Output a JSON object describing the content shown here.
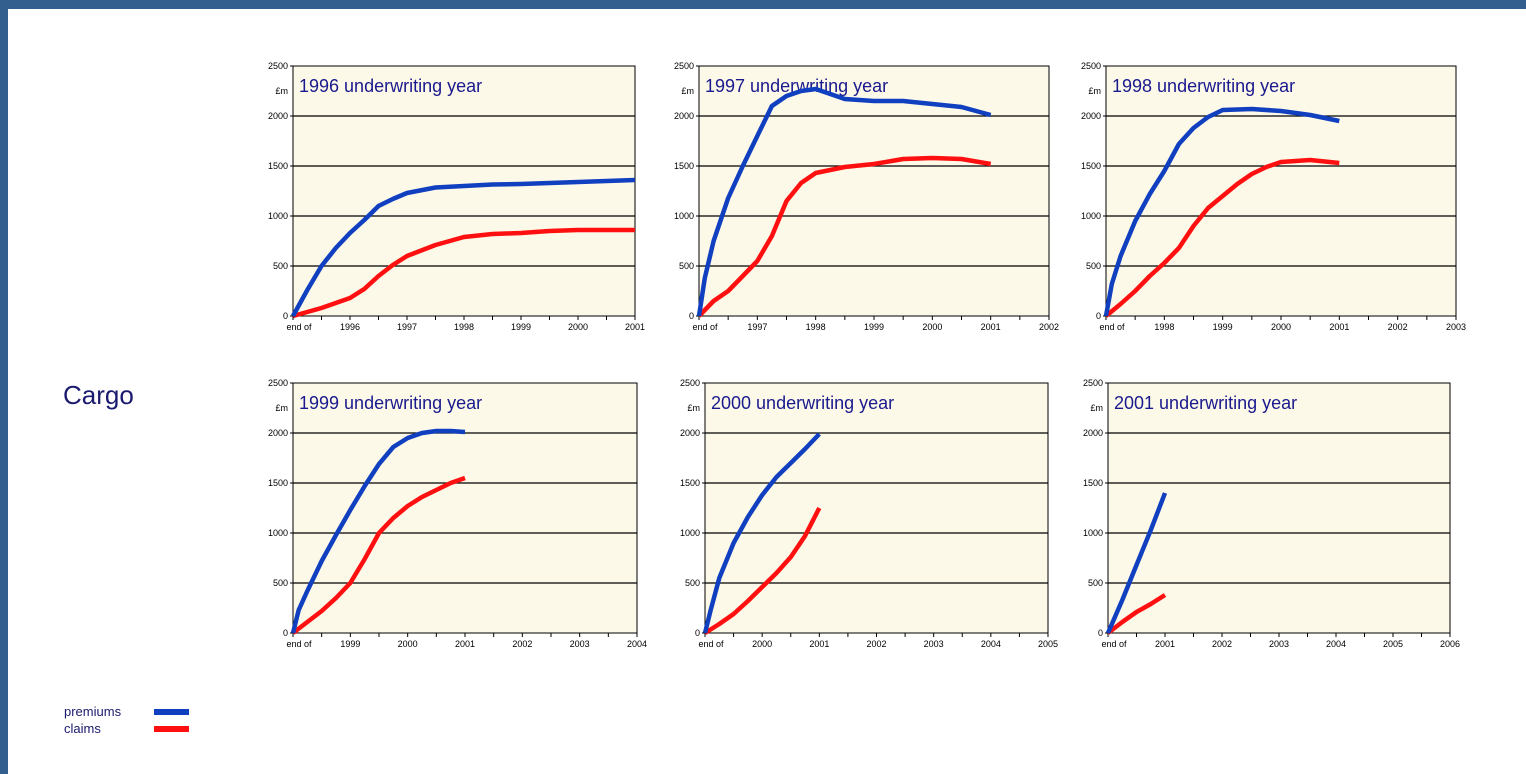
{
  "section_label": "Cargo",
  "legend": {
    "premiums_label": "premiums",
    "claims_label": "claims"
  },
  "colors": {
    "premiums": "#1040c0",
    "claims": "#ff1010",
    "plot_background": "#fdf9e8",
    "title_text": "#1a1a8e",
    "frame": "#335f8f"
  },
  "chart_data": [
    {
      "type": "line",
      "title": "1996 underwriting year",
      "ylabel": "£m",
      "ylim": [
        0,
        2500
      ],
      "yticks": [
        0,
        500,
        1000,
        1500,
        2000,
        2500
      ],
      "xlim": [
        0,
        6
      ],
      "x_tick_labels": [
        "end of",
        "1996",
        "1997",
        "1998",
        "1999",
        "2000",
        "2001"
      ],
      "grid": true,
      "series": [
        {
          "name": "premiums",
          "x": [
            0,
            0.25,
            0.5,
            0.75,
            1.0,
            1.25,
            1.5,
            1.75,
            2.0,
            2.5,
            3.0,
            3.5,
            4.0,
            4.5,
            5.0,
            5.5,
            6.0
          ],
          "y": [
            0,
            260,
            500,
            680,
            830,
            960,
            1100,
            1170,
            1230,
            1285,
            1300,
            1315,
            1320,
            1330,
            1340,
            1350,
            1360
          ]
        },
        {
          "name": "claims",
          "x": [
            0,
            0.5,
            1.0,
            1.25,
            1.5,
            1.75,
            2.0,
            2.5,
            3.0,
            3.5,
            4.0,
            4.5,
            5.0,
            6.0
          ],
          "y": [
            0,
            80,
            180,
            270,
            400,
            510,
            600,
            710,
            790,
            820,
            830,
            850,
            860,
            860
          ]
        }
      ]
    },
    {
      "type": "line",
      "title": "1997 underwriting year",
      "ylabel": "£m",
      "ylim": [
        0,
        2500
      ],
      "yticks": [
        0,
        500,
        1000,
        1500,
        2000,
        2500
      ],
      "xlim": [
        0,
        6
      ],
      "x_tick_labels": [
        "end of",
        "1997",
        "1998",
        "1999",
        "2000",
        "2001",
        "2002"
      ],
      "grid": true,
      "series": [
        {
          "name": "premiums",
          "x": [
            0,
            0.1,
            0.25,
            0.5,
            0.75,
            1.0,
            1.25,
            1.5,
            1.75,
            2.0,
            2.25,
            2.5,
            3.0,
            3.5,
            4.0,
            4.5,
            5.0
          ],
          "y": [
            0,
            380,
            750,
            1180,
            1500,
            1800,
            2100,
            2200,
            2250,
            2270,
            2220,
            2170,
            2150,
            2150,
            2120,
            2090,
            2010
          ]
        },
        {
          "name": "claims",
          "x": [
            0,
            0.25,
            0.5,
            0.75,
            1.0,
            1.25,
            1.5,
            1.75,
            2.0,
            2.5,
            3.0,
            3.5,
            4.0,
            4.5,
            5.0
          ],
          "y": [
            0,
            150,
            250,
            400,
            550,
            800,
            1150,
            1330,
            1430,
            1490,
            1520,
            1570,
            1580,
            1570,
            1520
          ]
        }
      ]
    },
    {
      "type": "line",
      "title": "1998 underwriting year",
      "ylabel": "£m",
      "ylim": [
        0,
        2500
      ],
      "yticks": [
        0,
        500,
        1000,
        1500,
        2000,
        2500
      ],
      "xlim": [
        0,
        6
      ],
      "x_tick_labels": [
        "end of",
        "1998",
        "1999",
        "2000",
        "2001",
        "2002",
        "2003"
      ],
      "grid": true,
      "series": [
        {
          "name": "premiums",
          "x": [
            0,
            0.1,
            0.25,
            0.5,
            0.75,
            1.0,
            1.25,
            1.5,
            1.75,
            2.0,
            2.5,
            3.0,
            3.5,
            4.0
          ],
          "y": [
            0,
            320,
            600,
            950,
            1220,
            1450,
            1720,
            1880,
            1990,
            2060,
            2070,
            2050,
            2010,
            1950
          ]
        },
        {
          "name": "claims",
          "x": [
            0,
            0.25,
            0.5,
            0.75,
            1.0,
            1.25,
            1.5,
            1.75,
            2.0,
            2.25,
            2.5,
            2.75,
            3.0,
            3.5,
            4.0
          ],
          "y": [
            0,
            120,
            250,
            400,
            530,
            680,
            900,
            1080,
            1200,
            1320,
            1420,
            1490,
            1540,
            1560,
            1530
          ]
        }
      ]
    },
    {
      "type": "line",
      "title": "1999 underwriting year",
      "ylabel": "£m",
      "ylim": [
        0,
        2500
      ],
      "yticks": [
        0,
        500,
        1000,
        1500,
        2000,
        2500
      ],
      "xlim": [
        0,
        6
      ],
      "x_tick_labels": [
        "end of",
        "1999",
        "2000",
        "2001",
        "2002",
        "2003",
        "2004"
      ],
      "grid": true,
      "series": [
        {
          "name": "premiums",
          "x": [
            0,
            0.1,
            0.25,
            0.5,
            0.75,
            1.0,
            1.25,
            1.5,
            1.75,
            2.0,
            2.25,
            2.5,
            2.75,
            3.0
          ],
          "y": [
            0,
            230,
            420,
            720,
            980,
            1230,
            1470,
            1690,
            1860,
            1950,
            2000,
            2020,
            2020,
            2010
          ]
        },
        {
          "name": "claims",
          "x": [
            0,
            0.25,
            0.5,
            0.75,
            1.0,
            1.25,
            1.5,
            1.75,
            2.0,
            2.25,
            2.5,
            2.75,
            3.0
          ],
          "y": [
            0,
            110,
            220,
            350,
            500,
            740,
            1000,
            1150,
            1270,
            1360,
            1430,
            1500,
            1550
          ]
        }
      ]
    },
    {
      "type": "line",
      "title": "2000 underwriting year",
      "ylabel": "£m",
      "ylim": [
        0,
        2500
      ],
      "yticks": [
        0,
        500,
        1000,
        1500,
        2000,
        2500
      ],
      "xlim": [
        0,
        6
      ],
      "x_tick_labels": [
        "end of",
        "2000",
        "2001",
        "2002",
        "2003",
        "2004",
        "2005"
      ],
      "grid": true,
      "series": [
        {
          "name": "premiums",
          "x": [
            0,
            0.1,
            0.25,
            0.5,
            0.75,
            1.0,
            1.25,
            1.5,
            1.75,
            2.0
          ],
          "y": [
            0,
            230,
            550,
            900,
            1160,
            1380,
            1560,
            1700,
            1840,
            1990
          ]
        },
        {
          "name": "claims",
          "x": [
            0,
            0.25,
            0.5,
            0.75,
            1.0,
            1.25,
            1.5,
            1.75,
            2.0
          ],
          "y": [
            0,
            90,
            190,
            320,
            460,
            600,
            760,
            970,
            1250
          ]
        }
      ]
    },
    {
      "type": "line",
      "title": "2001 underwriting year",
      "ylabel": "£m",
      "ylim": [
        0,
        2500
      ],
      "yticks": [
        0,
        500,
        1000,
        1500,
        2000,
        2500
      ],
      "xlim": [
        0,
        6
      ],
      "x_tick_labels": [
        "end of",
        "2001",
        "2002",
        "2003",
        "2004",
        "2005",
        "2006"
      ],
      "grid": true,
      "series": [
        {
          "name": "premiums",
          "x": [
            0,
            0.25,
            0.5,
            0.75,
            1.0
          ],
          "y": [
            0,
            330,
            680,
            1030,
            1400
          ]
        },
        {
          "name": "claims",
          "x": [
            0,
            0.25,
            0.5,
            0.75,
            1.0
          ],
          "y": [
            0,
            110,
            210,
            290,
            380
          ]
        }
      ]
    }
  ]
}
